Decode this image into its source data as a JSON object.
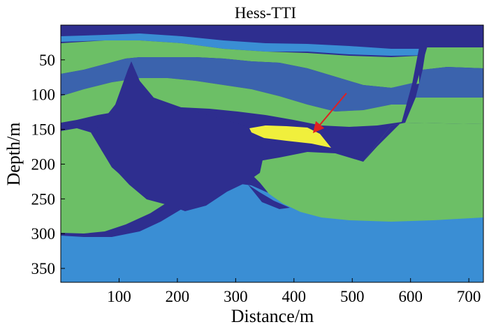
{
  "chart_data": {
    "type": "heatmap",
    "title": "Hess-TTI",
    "xlabel": "Distance/m",
    "ylabel": "Depth/m",
    "xlim": [
      0,
      725
    ],
    "ylim": [
      370,
      0
    ],
    "x_ticks": [
      100,
      200,
      300,
      400,
      500,
      600,
      700
    ],
    "y_ticks": [
      50,
      100,
      150,
      200,
      250,
      300,
      350
    ],
    "grid": false,
    "colors": {
      "dark_blue": "#2e2e8f",
      "medium_blue": "#3b63ad",
      "light_blue": "#3a8ed4",
      "green": "#6cbf66",
      "yellow": "#f0ef3c",
      "arrow": "#e02020"
    },
    "annotation": {
      "type": "arrow",
      "color": "red",
      "from": [
        490,
        98
      ],
      "to": [
        435,
        153
      ]
    }
  }
}
